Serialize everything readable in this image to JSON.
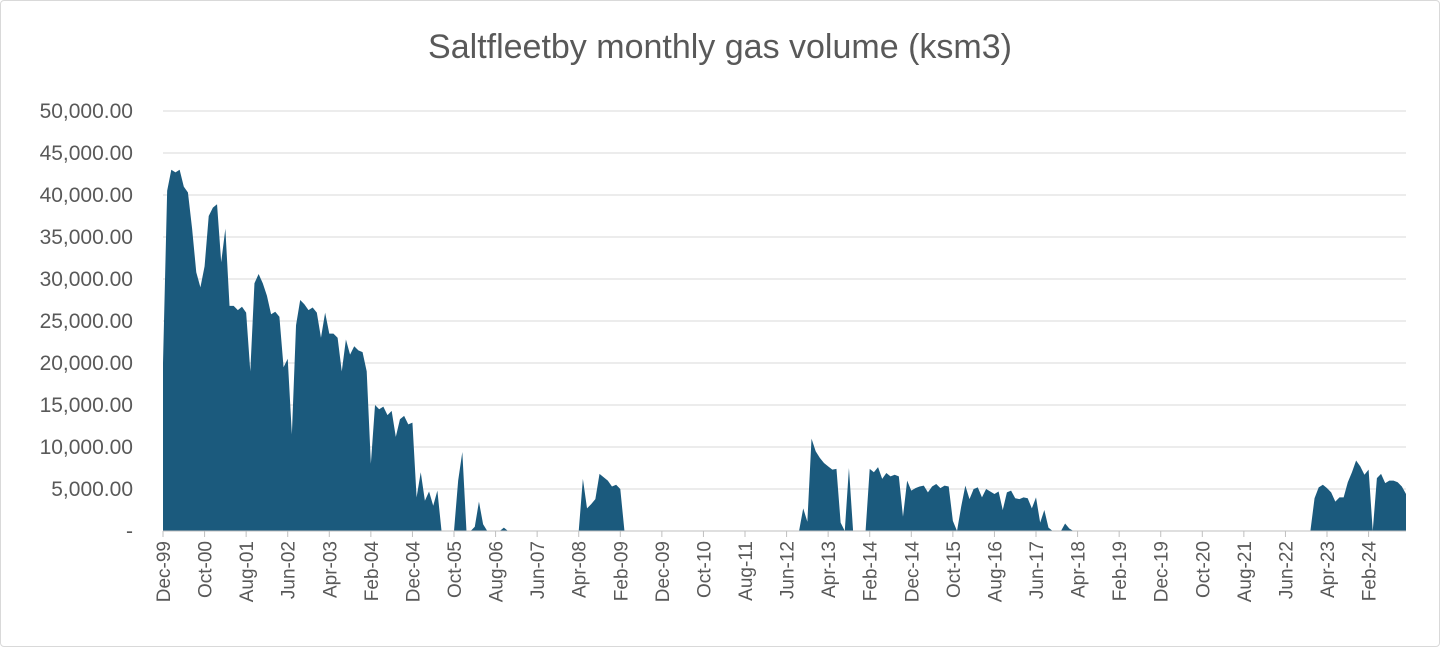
{
  "chart_data": {
    "type": "area",
    "title": "Saltfleetby monthly gas volume (ksm3)",
    "xlabel": "",
    "ylabel": "",
    "ylim": [
      0,
      50000
    ],
    "y_tick_values": [
      0,
      5000,
      10000,
      15000,
      20000,
      25000,
      30000,
      35000,
      40000,
      45000,
      50000
    ],
    "y_tick_labels": [
      "-",
      "5,000.00",
      "10,000.00",
      "15,000.00",
      "20,000.00",
      "25,000.00",
      "30,000.00",
      "35,000.00",
      "40,000.00",
      "45,000.00",
      "50,000.00"
    ],
    "x_tick_labels": [
      "Dec-99",
      "Oct-00",
      "Aug-01",
      "Jun-02",
      "Apr-03",
      "Feb-04",
      "Dec-04",
      "Oct-05",
      "Aug-06",
      "Jun-07",
      "Apr-08",
      "Feb-09",
      "Dec-09",
      "Oct-10",
      "Aug-11",
      "Jun-12",
      "Apr-13",
      "Feb-14",
      "Dec-14",
      "Oct-15",
      "Aug-16",
      "Jun-17",
      "Apr-18",
      "Feb-19",
      "Dec-19",
      "Oct-20",
      "Aug-21",
      "Jun-22",
      "Apr-23",
      "Feb-24"
    ],
    "x_start": "Dec-99",
    "x_end": "Nov-24",
    "grid": true,
    "legend": "none",
    "color": "#1b5a7d",
    "series": [
      {
        "values": [
          [
            0,
            20000
          ],
          [
            1,
            40500
          ],
          [
            2,
            43000
          ],
          [
            3,
            42700
          ],
          [
            4,
            43000
          ],
          [
            5,
            41000
          ],
          [
            6,
            40300
          ],
          [
            7,
            36000
          ],
          [
            8,
            30800
          ],
          [
            9,
            29000
          ],
          [
            10,
            31500
          ],
          [
            11,
            37500
          ],
          [
            12,
            38500
          ],
          [
            13,
            38900
          ],
          [
            14,
            32000
          ],
          [
            15,
            36000
          ],
          [
            16,
            26800
          ],
          [
            17,
            26800
          ],
          [
            18,
            26300
          ],
          [
            19,
            26700
          ],
          [
            20,
            26000
          ],
          [
            21,
            19000
          ],
          [
            22,
            29500
          ],
          [
            23,
            30600
          ],
          [
            24,
            29500
          ],
          [
            25,
            28000
          ],
          [
            26,
            25800
          ],
          [
            27,
            26100
          ],
          [
            28,
            25500
          ],
          [
            29,
            19500
          ],
          [
            30,
            20500
          ],
          [
            31,
            11500
          ],
          [
            32,
            24500
          ],
          [
            33,
            27500
          ],
          [
            34,
            27000
          ],
          [
            35,
            26300
          ],
          [
            36,
            26600
          ],
          [
            37,
            26000
          ],
          [
            38,
            23000
          ],
          [
            39,
            26000
          ],
          [
            40,
            23500
          ],
          [
            41,
            23500
          ],
          [
            42,
            23000
          ],
          [
            43,
            19000
          ],
          [
            44,
            22800
          ],
          [
            45,
            21000
          ],
          [
            46,
            22000
          ],
          [
            47,
            21500
          ],
          [
            48,
            21300
          ],
          [
            49,
            19000
          ],
          [
            50,
            8000
          ],
          [
            51,
            15000
          ],
          [
            52,
            14500
          ],
          [
            53,
            14800
          ],
          [
            54,
            13800
          ],
          [
            55,
            14300
          ],
          [
            56,
            11200
          ],
          [
            57,
            13300
          ],
          [
            58,
            13700
          ],
          [
            59,
            12700
          ],
          [
            60,
            12900
          ],
          [
            61,
            4000
          ],
          [
            62,
            7000
          ],
          [
            63,
            3600
          ],
          [
            64,
            4700
          ],
          [
            65,
            3000
          ],
          [
            66,
            4800
          ],
          [
            67,
            0
          ],
          [
            68,
            0
          ],
          [
            69,
            0
          ],
          [
            70,
            0
          ],
          [
            71,
            6000
          ],
          [
            72,
            9400
          ],
          [
            73,
            0
          ],
          [
            74,
            0
          ],
          [
            75,
            500
          ],
          [
            76,
            3500
          ],
          [
            77,
            800
          ],
          [
            78,
            0
          ],
          [
            79,
            0
          ],
          [
            80,
            0
          ],
          [
            81,
            0
          ],
          [
            82,
            400
          ],
          [
            83,
            0
          ],
          [
            100,
            0
          ],
          [
            101,
            6200
          ],
          [
            102,
            2700
          ],
          [
            103,
            3200
          ],
          [
            104,
            3800
          ],
          [
            105,
            6800
          ],
          [
            106,
            6400
          ],
          [
            107,
            6000
          ],
          [
            108,
            5300
          ],
          [
            109,
            5500
          ],
          [
            110,
            5000
          ],
          [
            111,
            0
          ],
          [
            153,
            0
          ],
          [
            154,
            2700
          ],
          [
            155,
            1100
          ],
          [
            156,
            11000
          ],
          [
            157,
            9500
          ],
          [
            158,
            8700
          ],
          [
            159,
            8100
          ],
          [
            160,
            7700
          ],
          [
            161,
            7300
          ],
          [
            162,
            7400
          ],
          [
            163,
            1000
          ],
          [
            164,
            0
          ],
          [
            165,
            7500
          ],
          [
            166,
            0
          ],
          [
            167,
            0
          ],
          [
            168,
            0
          ],
          [
            169,
            0
          ],
          [
            170,
            7400
          ],
          [
            171,
            7000
          ],
          [
            172,
            7600
          ],
          [
            173,
            6200
          ],
          [
            174,
            6900
          ],
          [
            175,
            6500
          ],
          [
            176,
            6700
          ],
          [
            177,
            6500
          ],
          [
            178,
            1700
          ],
          [
            179,
            6000
          ],
          [
            180,
            4800
          ],
          [
            181,
            5100
          ],
          [
            182,
            5300
          ],
          [
            183,
            5400
          ],
          [
            184,
            4600
          ],
          [
            185,
            5300
          ],
          [
            186,
            5600
          ],
          [
            187,
            5100
          ],
          [
            188,
            5400
          ],
          [
            189,
            5300
          ],
          [
            190,
            1200
          ],
          [
            191,
            0
          ],
          [
            192,
            2900
          ],
          [
            193,
            5400
          ],
          [
            194,
            3800
          ],
          [
            195,
            5000
          ],
          [
            196,
            5200
          ],
          [
            197,
            4000
          ],
          [
            198,
            5000
          ],
          [
            199,
            4700
          ],
          [
            200,
            4400
          ],
          [
            201,
            4700
          ],
          [
            202,
            2500
          ],
          [
            203,
            4600
          ],
          [
            204,
            4800
          ],
          [
            205,
            3900
          ],
          [
            206,
            3800
          ],
          [
            207,
            4000
          ],
          [
            208,
            3900
          ],
          [
            209,
            2700
          ],
          [
            210,
            4000
          ],
          [
            211,
            1000
          ],
          [
            212,
            2500
          ],
          [
            213,
            400
          ],
          [
            214,
            0
          ],
          [
            215,
            0
          ],
          [
            216,
            0
          ],
          [
            217,
            900
          ],
          [
            218,
            300
          ],
          [
            219,
            0
          ],
          [
            276,
            0
          ],
          [
            277,
            3900
          ],
          [
            278,
            5200
          ],
          [
            279,
            5500
          ],
          [
            280,
            5100
          ],
          [
            281,
            4600
          ],
          [
            282,
            3500
          ],
          [
            283,
            4000
          ],
          [
            284,
            4000
          ],
          [
            285,
            5800
          ],
          [
            286,
            7000
          ],
          [
            287,
            8400
          ],
          [
            288,
            7700
          ],
          [
            289,
            6700
          ],
          [
            290,
            7300
          ],
          [
            291,
            0
          ],
          [
            292,
            6300
          ],
          [
            293,
            6800
          ],
          [
            294,
            5700
          ],
          [
            295,
            6000
          ],
          [
            296,
            6000
          ],
          [
            297,
            5800
          ],
          [
            298,
            5300
          ],
          [
            299,
            4400
          ],
          [
            300,
            5700
          ],
          [
            301,
            5500
          ],
          [
            302,
            5000
          ]
        ]
      }
    ]
  }
}
